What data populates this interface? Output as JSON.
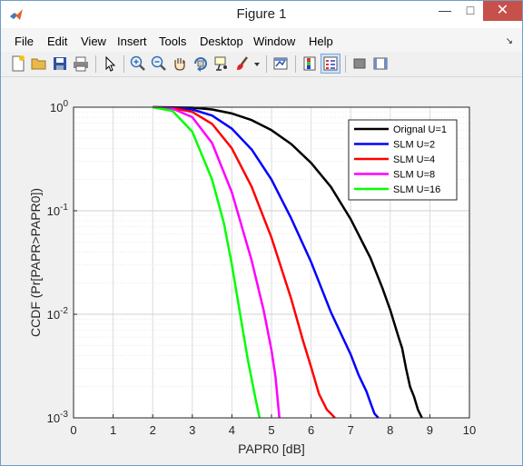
{
  "window": {
    "title": "Figure 1"
  },
  "menubar": {
    "items": [
      "File",
      "Edit",
      "View",
      "Insert",
      "Tools",
      "Desktop",
      "Window",
      "Help"
    ]
  },
  "toolbar": {
    "buttons": [
      "new-figure",
      "open-file",
      "save",
      "print",
      "edit-plot",
      "zoom-in",
      "zoom-out",
      "pan",
      "rotate-3d",
      "data-cursor",
      "brush",
      "brush-dropdown",
      "link-plot",
      "insert-colorbar",
      "insert-legend",
      "hide-plot-tools",
      "show-plot-tools"
    ]
  },
  "colors": {
    "title_bar": "#ffffff",
    "close_button": "#c7504a",
    "window_border": "#6e9ec8",
    "figure_bg": "#f0f0f0",
    "axes_bg": "#ffffff"
  },
  "chart_data": {
    "type": "line",
    "title": "",
    "xlabel": "PAPR0 [dB]",
    "ylabel": "CCDF (Pr[PAPR>PAPR0])",
    "xlim": [
      0,
      10
    ],
    "ylim": [
      0.001,
      1
    ],
    "y_scale": "log",
    "x_ticks": [
      "0",
      "1",
      "2",
      "3",
      "4",
      "5",
      "6",
      "7",
      "8",
      "9",
      "10"
    ],
    "y_ticks": [
      {
        "base": "10",
        "exp": "0"
      },
      {
        "base": "10",
        "exp": "-1"
      },
      {
        "base": "10",
        "exp": "-2"
      },
      {
        "base": "10",
        "exp": "-3"
      }
    ],
    "grid": true,
    "legend_position": "top-right",
    "series": [
      {
        "name": "Orignal U=1",
        "color": "#000000",
        "x": [
          2.0,
          3.0,
          3.5,
          4.0,
          4.5,
          5.0,
          5.5,
          6.0,
          6.5,
          7.0,
          7.5,
          7.8,
          8.0,
          8.2,
          8.3,
          8.4,
          8.5,
          8.6,
          8.7,
          8.8
        ],
        "y": [
          1.0,
          0.99,
          0.95,
          0.87,
          0.75,
          0.6,
          0.44,
          0.29,
          0.17,
          0.083,
          0.035,
          0.018,
          0.011,
          0.0062,
          0.0047,
          0.003,
          0.002,
          0.0016,
          0.0012,
          0.001
        ]
      },
      {
        "name": "SLM U=2",
        "color": "#0000ff",
        "x": [
          2.0,
          2.5,
          3.0,
          3.5,
          4.0,
          4.5,
          5.0,
          5.5,
          6.0,
          6.5,
          7.0,
          7.2,
          7.4,
          7.5,
          7.6,
          7.7
        ],
        "y": [
          1.0,
          0.99,
          0.95,
          0.83,
          0.62,
          0.39,
          0.2,
          0.084,
          0.032,
          0.0105,
          0.0041,
          0.0026,
          0.0018,
          0.0014,
          0.0011,
          0.001
        ]
      },
      {
        "name": "SLM U=4",
        "color": "#ff0000",
        "x": [
          2.0,
          2.5,
          3.0,
          3.5,
          4.0,
          4.5,
          5.0,
          5.5,
          5.8,
          6.0,
          6.2,
          6.4,
          6.5,
          6.6
        ],
        "y": [
          1.0,
          0.98,
          0.9,
          0.69,
          0.4,
          0.17,
          0.055,
          0.014,
          0.0055,
          0.0031,
          0.0017,
          0.0012,
          0.0011,
          0.001
        ]
      },
      {
        "name": "SLM U=8",
        "color": "#ff00ff",
        "x": [
          2.0,
          2.5,
          3.0,
          3.5,
          4.0,
          4.5,
          4.8,
          5.0,
          5.1,
          5.2
        ],
        "y": [
          1.0,
          0.97,
          0.8,
          0.45,
          0.15,
          0.033,
          0.011,
          0.0045,
          0.0025,
          0.001
        ]
      },
      {
        "name": "SLM U=16",
        "color": "#00ff00",
        "x": [
          2.0,
          2.5,
          3.0,
          3.5,
          3.8,
          4.0,
          4.2,
          4.4,
          4.6,
          4.7
        ],
        "y": [
          1.0,
          0.92,
          0.58,
          0.2,
          0.075,
          0.03,
          0.0105,
          0.0037,
          0.0015,
          0.001
        ]
      }
    ]
  }
}
